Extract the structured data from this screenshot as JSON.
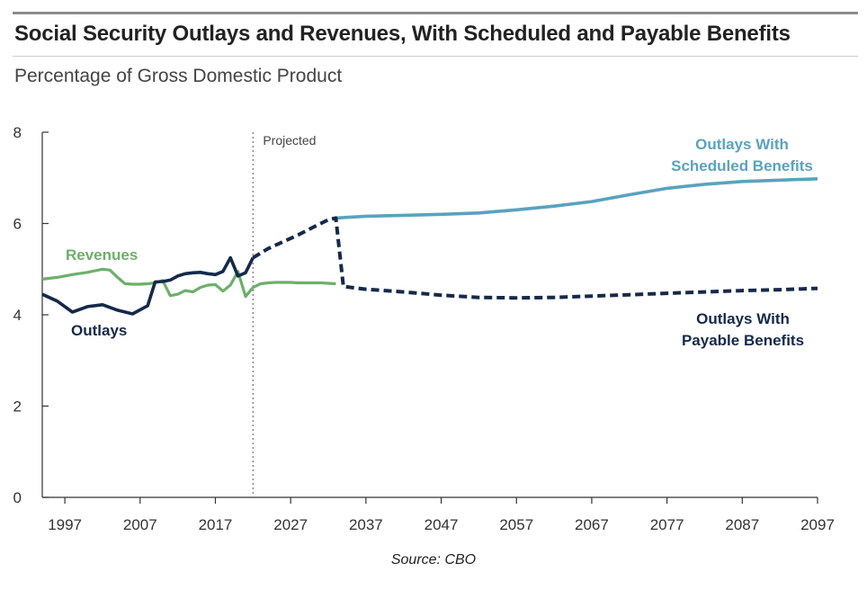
{
  "title": "Social Security Outlays and Revenues, With Scheduled and Payable Benefits",
  "subtitle": "Percentage of Gross Domestic Product",
  "source": "Source: CBO",
  "colors": {
    "revenues": "#6cb06a",
    "outlays_historical": "#15294a",
    "scheduled": "#5aa2bf",
    "payable": "#15294a",
    "axis": "#333333",
    "label_text": "#333333"
  },
  "chart_data": {
    "type": "line",
    "xlim": [
      1994,
      2097
    ],
    "ylim": [
      0,
      8
    ],
    "x_ticks": [
      1997,
      2007,
      2017,
      2027,
      2037,
      2047,
      2057,
      2067,
      2077,
      2087,
      2097
    ],
    "y_ticks": [
      0,
      2,
      4,
      6,
      8
    ],
    "grid": false,
    "projection_start": 2022,
    "projection_label": "Projected",
    "series": [
      {
        "name": "Revenues",
        "style": "solid",
        "x": [
          1994,
          1996,
          1998,
          2000,
          2002,
          2003,
          2004,
          2005,
          2006,
          2007,
          2008,
          2009,
          2010,
          2011,
          2012,
          2013,
          2014,
          2015,
          2016,
          2017,
          2018,
          2019,
          2020,
          2021,
          2022,
          2023,
          2024,
          2025,
          2026,
          2027,
          2028,
          2029,
          2030,
          2031,
          2032,
          2033
        ],
        "y": [
          4.78,
          4.82,
          4.88,
          4.93,
          5.0,
          4.98,
          4.82,
          4.68,
          4.67,
          4.67,
          4.68,
          4.7,
          4.75,
          4.42,
          4.45,
          4.53,
          4.5,
          4.6,
          4.65,
          4.66,
          4.52,
          4.65,
          4.95,
          4.4,
          4.6,
          4.68,
          4.7,
          4.71,
          4.71,
          4.71,
          4.7,
          4.7,
          4.7,
          4.7,
          4.69,
          4.68
        ]
      },
      {
        "name": "Outlays",
        "style": "solid",
        "x": [
          1994,
          1996,
          1998,
          2000,
          2002,
          2004,
          2006,
          2008,
          2009,
          2010,
          2011,
          2012,
          2013,
          2014,
          2015,
          2016,
          2017,
          2018,
          2019,
          2020,
          2021,
          2022
        ],
        "y": [
          4.45,
          4.3,
          4.06,
          4.18,
          4.22,
          4.1,
          4.02,
          4.2,
          4.72,
          4.73,
          4.76,
          4.85,
          4.9,
          4.92,
          4.93,
          4.9,
          4.88,
          4.95,
          5.25,
          4.85,
          4.92,
          5.25
        ]
      },
      {
        "name": "Outlays With Scheduled Benefits",
        "style": "solid",
        "x": [
          2033,
          2037,
          2042,
          2047,
          2052,
          2057,
          2062,
          2067,
          2072,
          2077,
          2082,
          2087,
          2092,
          2097
        ],
        "y": [
          6.12,
          6.16,
          6.18,
          6.2,
          6.23,
          6.3,
          6.38,
          6.48,
          6.63,
          6.77,
          6.86,
          6.92,
          6.95,
          6.98
        ]
      },
      {
        "name": "Outlays With Payable Benefits",
        "style": "dashed",
        "x": [
          2022,
          2024,
          2026,
          2028,
          2030,
          2032,
          2033,
          2034,
          2037,
          2042,
          2047,
          2052,
          2057,
          2062,
          2067,
          2072,
          2077,
          2082,
          2087,
          2092,
          2097
        ],
        "y": [
          5.25,
          5.45,
          5.6,
          5.75,
          5.92,
          6.08,
          6.12,
          4.62,
          4.56,
          4.5,
          4.43,
          4.38,
          4.37,
          4.38,
          4.41,
          4.44,
          4.47,
          4.5,
          4.53,
          4.55,
          4.58
        ]
      }
    ]
  },
  "labels": {
    "revenues": "Revenues",
    "outlays": "Outlays",
    "scheduled_line1": "Outlays With",
    "scheduled_line2": "Scheduled Benefits",
    "payable_line1": "Outlays With",
    "payable_line2": "Payable Benefits"
  }
}
